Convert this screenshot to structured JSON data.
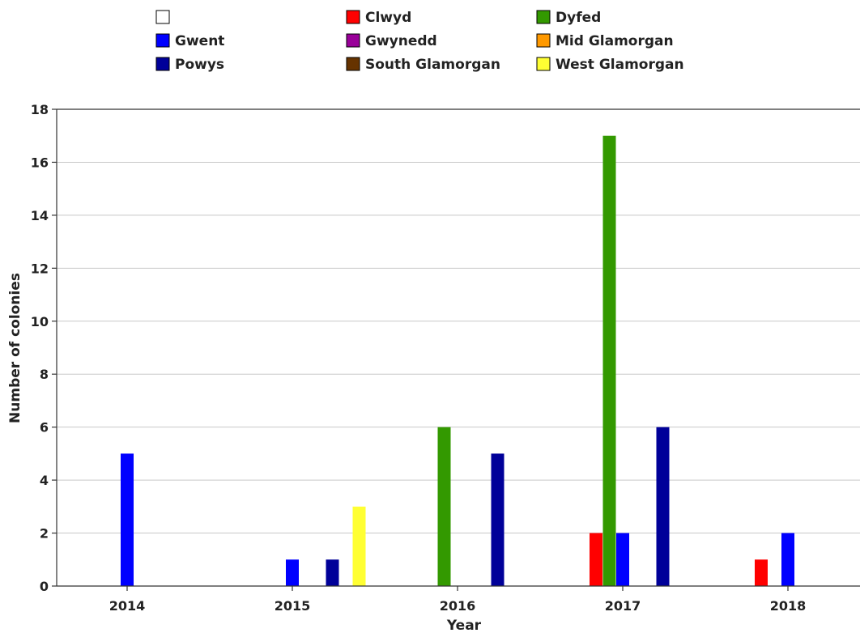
{
  "chart_data": {
    "type": "bar",
    "title": "",
    "xlabel": "Year",
    "ylabel": "Number of colonies",
    "ylim": [
      0,
      18
    ],
    "yticks": [
      0,
      2,
      4,
      6,
      8,
      10,
      12,
      14,
      16,
      18
    ],
    "grid": true,
    "legend_placement": "top",
    "categories": [
      "2014",
      "2015",
      "2016",
      "2017",
      "2018"
    ],
    "series": [
      {
        "name": "",
        "color": "#ffffff",
        "values": [
          0,
          0,
          0,
          0,
          0
        ]
      },
      {
        "name": "Clwyd",
        "color": "#ff0000",
        "values": [
          0,
          0,
          0,
          2,
          1
        ]
      },
      {
        "name": "Dyfed",
        "color": "#339900",
        "values": [
          0,
          0,
          6,
          17,
          0
        ]
      },
      {
        "name": "Gwent",
        "color": "#0000ff",
        "values": [
          5,
          1,
          0,
          2,
          2
        ]
      },
      {
        "name": "Gwynedd",
        "color": "#990099",
        "values": [
          0,
          0,
          0,
          0,
          0
        ]
      },
      {
        "name": "Mid Glamorgan",
        "color": "#ff9900",
        "values": [
          0,
          0,
          0,
          0,
          0
        ]
      },
      {
        "name": "Powys",
        "color": "#000099",
        "values": [
          0,
          1,
          5,
          6,
          0
        ]
      },
      {
        "name": "South Glamorgan",
        "color": "#663300",
        "values": [
          0,
          0,
          0,
          0,
          0
        ]
      },
      {
        "name": "West Glamorgan",
        "color": "#ffff33",
        "values": [
          0,
          3,
          0,
          0,
          0
        ]
      }
    ]
  }
}
